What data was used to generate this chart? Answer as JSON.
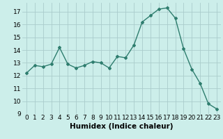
{
  "x": [
    0,
    1,
    2,
    3,
    4,
    5,
    6,
    7,
    8,
    9,
    10,
    11,
    12,
    13,
    14,
    15,
    16,
    17,
    18,
    19,
    20,
    21,
    22,
    23
  ],
  "y": [
    12.2,
    12.8,
    12.7,
    12.9,
    14.2,
    12.9,
    12.6,
    12.8,
    13.1,
    13.0,
    12.6,
    13.5,
    13.4,
    14.4,
    16.2,
    16.7,
    17.2,
    17.3,
    16.5,
    14.1,
    12.5,
    11.4,
    9.8,
    9.4
  ],
  "line_color": "#2e7d6e",
  "marker": "D",
  "markersize": 2.0,
  "linewidth": 1.0,
  "bg_color": "#cceeea",
  "grid_color": "#aacccc",
  "xlabel": "Humidex (Indice chaleur)",
  "xlabel_fontsize": 7.5,
  "tick_fontsize": 6.5,
  "xlim": [
    -0.5,
    23.5
  ],
  "ylim": [
    9,
    17.7
  ],
  "yticks": [
    9,
    10,
    11,
    12,
    13,
    14,
    15,
    16,
    17
  ],
  "xticks": [
    0,
    1,
    2,
    3,
    4,
    5,
    6,
    7,
    8,
    9,
    10,
    11,
    12,
    13,
    14,
    15,
    16,
    17,
    18,
    19,
    20,
    21,
    22,
    23
  ]
}
